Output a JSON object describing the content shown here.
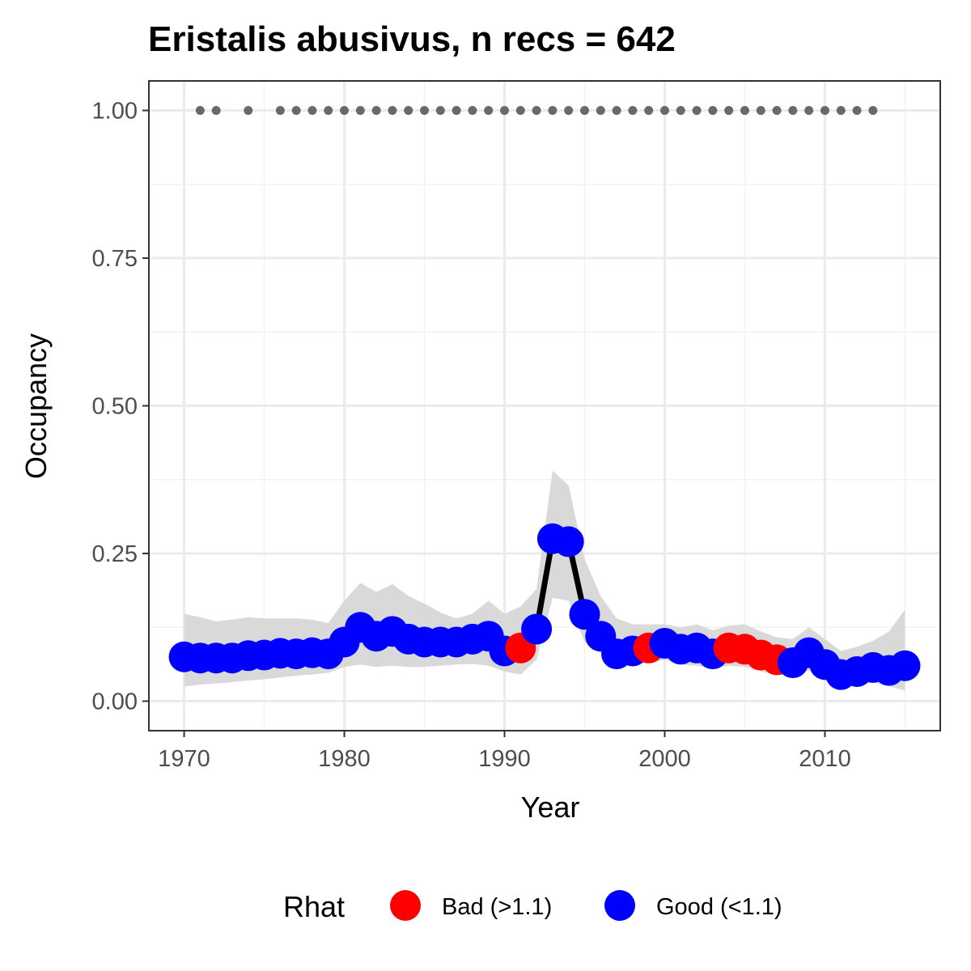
{
  "chart_data": {
    "type": "line",
    "title": "Eristalis abusivus, n recs = 642",
    "xlabel": "Year",
    "ylabel": "Occupancy",
    "xlim": [
      1967.8,
      2017.2
    ],
    "ylim": [
      -0.05,
      1.05
    ],
    "x_ticks": [
      1970,
      1980,
      1990,
      2000,
      2010
    ],
    "x_tick_labels": [
      "1970",
      "1980",
      "1990",
      "2000",
      "2010"
    ],
    "y_ticks": [
      0,
      0.25,
      0.5,
      0.75,
      1.0
    ],
    "y_tick_labels": [
      "0.00",
      "0.25",
      "0.50",
      "0.75",
      "1.00"
    ],
    "grid": true,
    "legend": {
      "title": "Rhat",
      "position": "bottom",
      "entries": [
        {
          "label": "Bad (>1.1)",
          "color": "#ff0000"
        },
        {
          "label": "Good (<1.1)",
          "color": "#0000ff"
        }
      ]
    },
    "colors": {
      "bad": "#ff0000",
      "good": "#0000ff",
      "line": "#000000",
      "ribbon": "#d9d9d9",
      "record_dots": "#696969"
    },
    "years": [
      1970,
      1971,
      1972,
      1973,
      1974,
      1975,
      1976,
      1977,
      1978,
      1979,
      1980,
      1981,
      1982,
      1983,
      1984,
      1985,
      1986,
      1987,
      1988,
      1989,
      1990,
      1991,
      1992,
      1993,
      1994,
      1995,
      1996,
      1997,
      1998,
      1999,
      2000,
      2001,
      2002,
      2003,
      2004,
      2005,
      2006,
      2007,
      2008,
      2009,
      2010,
      2011,
      2012,
      2013,
      2014,
      2015
    ],
    "occupancy": [
      0.075,
      0.073,
      0.073,
      0.073,
      0.077,
      0.078,
      0.081,
      0.08,
      0.082,
      0.08,
      0.1,
      0.125,
      0.11,
      0.118,
      0.105,
      0.1,
      0.1,
      0.1,
      0.105,
      0.11,
      0.085,
      0.09,
      0.122,
      0.275,
      0.27,
      0.147,
      0.11,
      0.08,
      0.085,
      0.09,
      0.098,
      0.088,
      0.09,
      0.08,
      0.09,
      0.088,
      0.078,
      0.07,
      0.065,
      0.082,
      0.062,
      0.045,
      0.05,
      0.057,
      0.052,
      0.06
    ],
    "lower": [
      0.025,
      0.028,
      0.03,
      0.032,
      0.035,
      0.037,
      0.04,
      0.043,
      0.045,
      0.048,
      0.058,
      0.062,
      0.058,
      0.06,
      0.058,
      0.058,
      0.06,
      0.062,
      0.063,
      0.06,
      0.05,
      0.045,
      0.07,
      0.175,
      0.17,
      0.1,
      0.082,
      0.06,
      0.062,
      0.065,
      0.07,
      0.062,
      0.06,
      0.055,
      0.06,
      0.058,
      0.05,
      0.045,
      0.042,
      0.052,
      0.035,
      0.025,
      0.028,
      0.032,
      0.025,
      0.018
    ],
    "upper": [
      0.148,
      0.142,
      0.135,
      0.138,
      0.142,
      0.14,
      0.14,
      0.14,
      0.138,
      0.132,
      0.17,
      0.2,
      0.185,
      0.198,
      0.178,
      0.165,
      0.15,
      0.14,
      0.148,
      0.17,
      0.148,
      0.16,
      0.19,
      0.39,
      0.365,
      0.24,
      0.178,
      0.14,
      0.13,
      0.13,
      0.13,
      0.125,
      0.13,
      0.12,
      0.128,
      0.13,
      0.118,
      0.108,
      0.105,
      0.125,
      0.105,
      0.085,
      0.092,
      0.102,
      0.118,
      0.155
    ],
    "rhat_status": [
      "good",
      "good",
      "good",
      "good",
      "good",
      "good",
      "good",
      "good",
      "good",
      "good",
      "good",
      "good",
      "good",
      "good",
      "good",
      "good",
      "good",
      "good",
      "good",
      "good",
      "good",
      "bad",
      "good",
      "good",
      "good",
      "good",
      "good",
      "good",
      "good",
      "bad",
      "good",
      "good",
      "good",
      "good",
      "bad",
      "bad",
      "bad",
      "bad",
      "good",
      "good",
      "good",
      "good",
      "good",
      "good",
      "good",
      "good"
    ],
    "record_years": [
      1971,
      1972,
      1974,
      1976,
      1977,
      1978,
      1979,
      1980,
      1981,
      1982,
      1983,
      1984,
      1985,
      1986,
      1987,
      1988,
      1989,
      1990,
      1991,
      1992,
      1993,
      1994,
      1995,
      1996,
      1997,
      1998,
      1999,
      2000,
      2001,
      2002,
      2003,
      2004,
      2005,
      2006,
      2007,
      2008,
      2009,
      2010,
      2011,
      2012,
      2013
    ],
    "record_value": 1.0
  }
}
